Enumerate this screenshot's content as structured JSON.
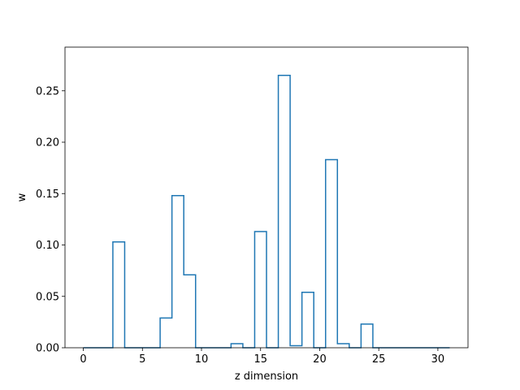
{
  "chart_data": {
    "type": "step",
    "title": "",
    "xlabel": "z dimension",
    "ylabel": "w",
    "xlim": [
      -1.55,
      32.55
    ],
    "ylim": [
      0,
      0.2925
    ],
    "x_ticks": [
      0,
      5,
      10,
      15,
      20,
      25,
      30
    ],
    "y_ticks": [
      0.0,
      0.05,
      0.1,
      0.15,
      0.2,
      0.25
    ],
    "y_tick_labels": [
      "0.00",
      "0.05",
      "0.10",
      "0.15",
      "0.20",
      "0.25"
    ],
    "grid": false,
    "line_color": "#1f77b4",
    "x": [
      0,
      1,
      2,
      3,
      4,
      5,
      6,
      7,
      8,
      9,
      10,
      11,
      12,
      13,
      14,
      15,
      16,
      17,
      18,
      19,
      20,
      21,
      22,
      23,
      24,
      25,
      26,
      27,
      28,
      29,
      30,
      31
    ],
    "values": [
      0,
      0,
      0,
      0.103,
      0,
      0,
      0,
      0.029,
      0.148,
      0.071,
      0,
      0,
      0,
      0.004,
      0,
      0.113,
      0,
      0.265,
      0.002,
      0.054,
      0,
      0.183,
      0.004,
      0,
      0.023,
      0,
      0,
      0,
      0,
      0,
      0,
      0
    ]
  }
}
